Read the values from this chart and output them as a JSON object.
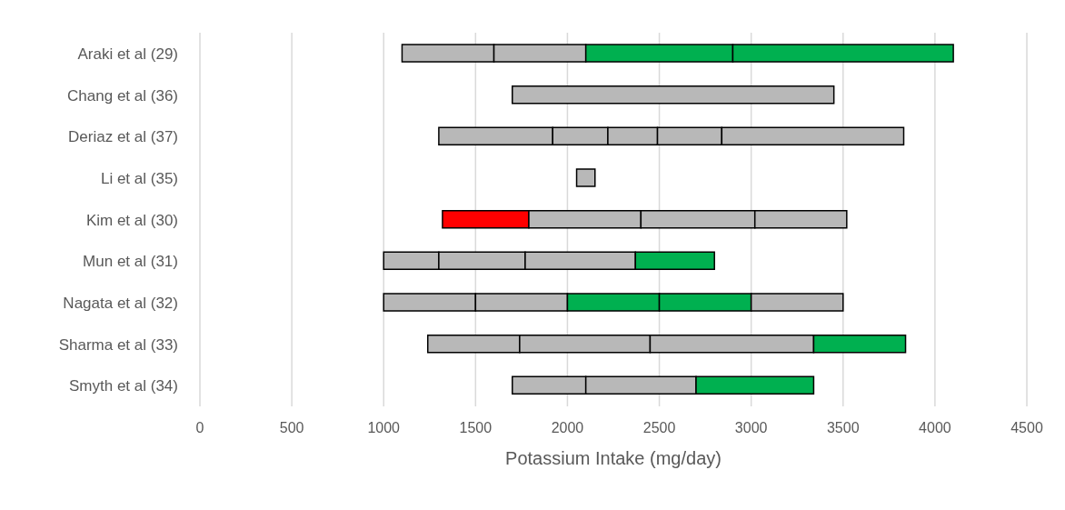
{
  "chart_data": {
    "type": "bar",
    "orientation": "horizontal",
    "categories": [
      "Araki et al (29)",
      "Chang et al (36)",
      "Deriaz et al (37)",
      "Li et al (35)",
      "Kim et al (30)",
      "Mun et al (31)",
      "Nagata et al (32)",
      "Sharma et al (33)",
      "Smyth et al (34)"
    ],
    "series": [
      {
        "base": [
          1100,
          1700,
          1300,
          2050,
          1320,
          1000,
          1000,
          1240,
          1700
        ],
        "values": [
          500,
          1750,
          620,
          100,
          470,
          300,
          500,
          500,
          400
        ],
        "colors": [
          "#b8b8b8",
          "#b8b8b8",
          "#b8b8b8",
          "#b8b8b8",
          "#ff0000",
          "#b8b8b8",
          "#b8b8b8",
          "#b8b8b8",
          "#b8b8b8"
        ]
      },
      {
        "base": [
          1600,
          null,
          1920,
          null,
          1790,
          1300,
          1500,
          1740,
          2100
        ],
        "values": [
          500,
          null,
          300,
          null,
          610,
          470,
          500,
          710,
          600
        ],
        "colors": [
          "#b8b8b8",
          null,
          "#b8b8b8",
          null,
          "#b8b8b8",
          "#b8b8b8",
          "#b8b8b8",
          "#b8b8b8",
          "#b8b8b8"
        ]
      },
      {
        "base": [
          2100,
          null,
          2220,
          null,
          2400,
          1770,
          2000,
          2450,
          2700
        ],
        "values": [
          800,
          null,
          270,
          null,
          620,
          600,
          500,
          890,
          640
        ],
        "colors": [
          "#00b050",
          null,
          "#b8b8b8",
          null,
          "#b8b8b8",
          "#b8b8b8",
          "#00b050",
          "#b8b8b8",
          "#00b050"
        ]
      },
      {
        "base": [
          2900,
          null,
          2490,
          null,
          3020,
          2370,
          2500,
          3340,
          null
        ],
        "values": [
          1200,
          null,
          350,
          null,
          500,
          430,
          500,
          500,
          null
        ],
        "colors": [
          "#00b050",
          null,
          "#b8b8b8",
          null,
          "#b8b8b8",
          "#00b050",
          "#00b050",
          "#00b050",
          null
        ]
      },
      {
        "base": [
          null,
          null,
          2840,
          null,
          null,
          null,
          3000,
          null,
          null
        ],
        "values": [
          null,
          null,
          990,
          null,
          null,
          null,
          500,
          null,
          null
        ],
        "colors": [
          null,
          null,
          "#b8b8b8",
          null,
          null,
          null,
          "#b8b8b8",
          null,
          null
        ]
      }
    ],
    "xlabel": "Potassium Intake (mg/day)",
    "xlim": [
      0,
      4500
    ],
    "xticks": [
      0,
      500,
      1000,
      1500,
      2000,
      2500,
      3000,
      3500,
      4000,
      4500
    ],
    "grid": "x"
  }
}
